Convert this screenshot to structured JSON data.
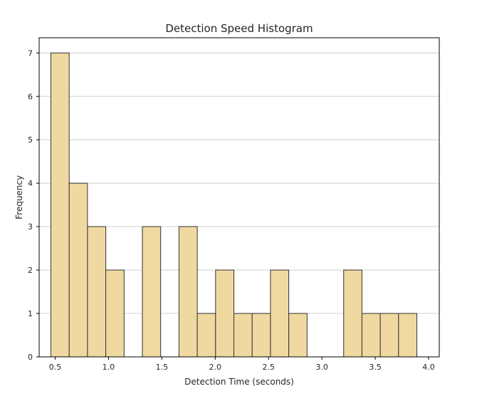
{
  "chart_data": {
    "type": "bar",
    "title": "Detection Speed Histogram",
    "xlabel": "Detection Time (seconds)",
    "ylabel": "Frequency",
    "xlim": [
      0.35,
      4.1
    ],
    "ylim": [
      0,
      7.35
    ],
    "xticks": [
      0.5,
      1.0,
      1.5,
      2.0,
      2.5,
      3.0,
      3.5,
      4.0
    ],
    "xtick_labels": [
      "0.5",
      "1.0",
      "1.5",
      "2.0",
      "2.5",
      "3.0",
      "3.5",
      "4.0"
    ],
    "yticks": [
      0,
      1,
      2,
      3,
      4,
      5,
      6,
      7
    ],
    "ytick_labels": [
      "0",
      "1",
      "2",
      "3",
      "4",
      "5",
      "6",
      "7"
    ],
    "grid": "horizontal",
    "bin_edges": [
      0.46,
      0.6315,
      0.803,
      0.9745,
      1.146,
      1.3175,
      1.489,
      1.6605,
      1.832,
      2.0035,
      2.175,
      2.3465,
      2.518,
      2.6895,
      2.861,
      3.0325,
      3.204,
      3.3755,
      3.547,
      3.7185,
      3.89
    ],
    "counts": [
      7,
      4,
      3,
      2,
      0,
      3,
      0,
      3,
      1,
      2,
      1,
      1,
      2,
      1,
      0,
      0,
      2,
      1,
      1,
      1
    ],
    "colors": {
      "bar_fill": "#f0d9a0",
      "bar_edge": "#333333",
      "grid": "#d0d0d0",
      "axes": "#000000"
    }
  }
}
